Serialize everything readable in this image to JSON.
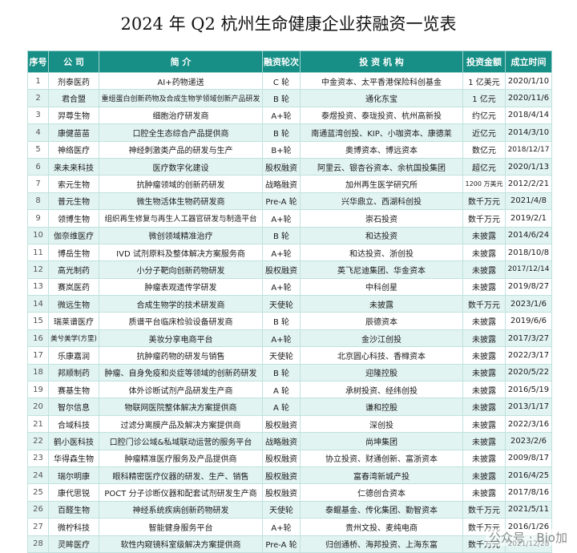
{
  "title": "2024 年 Q2 杭州生命健康企业获融资一览表",
  "table": {
    "header": [
      "序号",
      "公 司",
      "简 介",
      "融资轮次",
      "投 资 机 构",
      "投资金额",
      "成立时间"
    ],
    "rows": [
      [
        "1",
        "剂泰医药",
        "AI+药物递送",
        "C 轮",
        "中金资本、太平香港保险科创基金",
        "1 亿美元",
        "2020/1/10"
      ],
      [
        "2",
        "君合盟",
        "重组蛋白创新药物及合成生物学领域创新产品研发",
        "B 轮",
        "通化东宝",
        "1 亿元",
        "2020/11/6"
      ],
      [
        "3",
        "羿尊生物",
        "细胞治疗研发商",
        "A+轮",
        "泰煜投资、泰珑投资、杭州高新投",
        "约亿元",
        "2018/4/14"
      ],
      [
        "4",
        "康健苗苗",
        "口腔全生态综合产品提供商",
        "B 轮",
        "南通蓝湾创投、KIP、小咖资本、康德莱",
        "近亿元",
        "2014/3/10"
      ],
      [
        "5",
        "神络医疗",
        "神经刺激类产品的研发与生产",
        "B+轮",
        "奥博资本、博远资本",
        "数亿元",
        "2018/12/17"
      ],
      [
        "6",
        "来未来科技",
        "医疗数字化建设",
        "股权融资",
        "阿里云、银杏谷资本、余杭国投集团",
        "超亿元",
        "2020/1/13"
      ],
      [
        "7",
        "索元生物",
        "抗肿瘤领域的创新药研发",
        "战略融资",
        "加州再生医学研究所",
        "1200 万美元",
        "2012/2/21"
      ],
      [
        "8",
        "普元生物",
        "微生物活体生物药研发商",
        "Pre-A 轮",
        "兴华鼎立、西湖科创投",
        "数千万元",
        "2021/4/8"
      ],
      [
        "9",
        "领博生物",
        "组织再生修复与再生人工器官研发与制造平台",
        "A+轮",
        "崇石投资",
        "数千万元",
        "2019/2/1"
      ],
      [
        "10",
        "伽奈维医疗",
        "微创领域精准治疗",
        "B 轮",
        "和达投资",
        "未披露",
        "2014/6/24"
      ],
      [
        "11",
        "博岳生物",
        "IVD 试剂原料及整体解决方案服务商",
        "A+轮",
        "和达投资、浙创投",
        "未披露",
        "2018/10/8"
      ],
      [
        "12",
        "高光制药",
        "小分子靶向创新药物研发",
        "股权融资",
        "英飞尼迪集团、华金资本",
        "未披露",
        "2017/12/14"
      ],
      [
        "13",
        "赛岚医药",
        "肿瘤表观遗传学研发",
        "A+轮",
        "中科创星",
        "未披露",
        "2019/8/27"
      ],
      [
        "14",
        "微远生物",
        "合成生物学的技术研发商",
        "天使轮",
        "未披露",
        "数千万元",
        "2023/1/6"
      ],
      [
        "15",
        "瑞莱谱医疗",
        "质谱平台临床检验设备研发商",
        "B 轮",
        "辰德资本",
        "未披露",
        "2019/6/6"
      ],
      [
        "16",
        "美兮美学(方里)",
        "美妆分享电商平台",
        "A+轮",
        "金沙江创投",
        "未披露",
        "2017/3/27"
      ],
      [
        "17",
        "乐康嘉润",
        "抗肿瘤药物的研发与销售",
        "天使轮",
        "北京圆心科技、香橼资本",
        "未披露",
        "2022/3/17"
      ],
      [
        "18",
        "邦顺制药",
        "肿瘤、自身免疫和炎症等领域的创新药研发",
        "B 轮",
        "迎隆控股",
        "未披露",
        "2020/5/22"
      ],
      [
        "19",
        "赛基生物",
        "体外诊断试剂产品研发生产商",
        "A 轮",
        "承树投资、经纬创投",
        "未披露",
        "2016/5/19"
      ],
      [
        "20",
        "智尔信息",
        "物联网医院整体解决方案提供商",
        "A 轮",
        "谦和控股",
        "未披露",
        "2013/1/17"
      ],
      [
        "21",
        "合域科技",
        "过滤分离膜产品及解决方案提供商",
        "股权融资",
        "深创投",
        "未披露",
        "2022/3/16"
      ],
      [
        "22",
        "鹤小医科技",
        "口腔门诊公域&私域联动运营的服务平台",
        "战略融资",
        "尚坤集团",
        "未披露",
        "2023/2/6"
      ],
      [
        "23",
        "华得森生物",
        "肿瘤精准医疗服务及产品提供商",
        "股权融资",
        "协立投资、财通创新、富浙资本",
        "未披露",
        "2009/8/17"
      ],
      [
        "24",
        "瑞尔明康",
        "眼科精密医疗仪器的研发、生产、销售",
        "股权融资",
        "富春湾新城产投",
        "未披露",
        "2016/4/25"
      ],
      [
        "25",
        "康代思锐",
        "POCT 分子诊断仪器和配套试剂研发生产商",
        "股权融资",
        "仁德创合资本",
        "未披露",
        "2017/8/16"
      ],
      [
        "26",
        "百醛生物",
        "神经系统疾病创新药物研发",
        "天使轮",
        "泰鲲基金、传化集团、勤智资本",
        "数千万元",
        "2021/5/11"
      ],
      [
        "27",
        "微柠科技",
        "智能健身服务平台",
        "A+轮",
        "贵州文投、麦纯电商",
        "数千万元",
        "2016/1/26"
      ],
      [
        "28",
        "灵眸医疗",
        "软性内窥镜科室级解决方案提供商",
        "Pre-A 轮",
        "归创通桥、海邦投资、上海东富",
        "数千万元",
        "2021/12/28"
      ]
    ]
  },
  "watermark": "公众号 · Bio加"
}
